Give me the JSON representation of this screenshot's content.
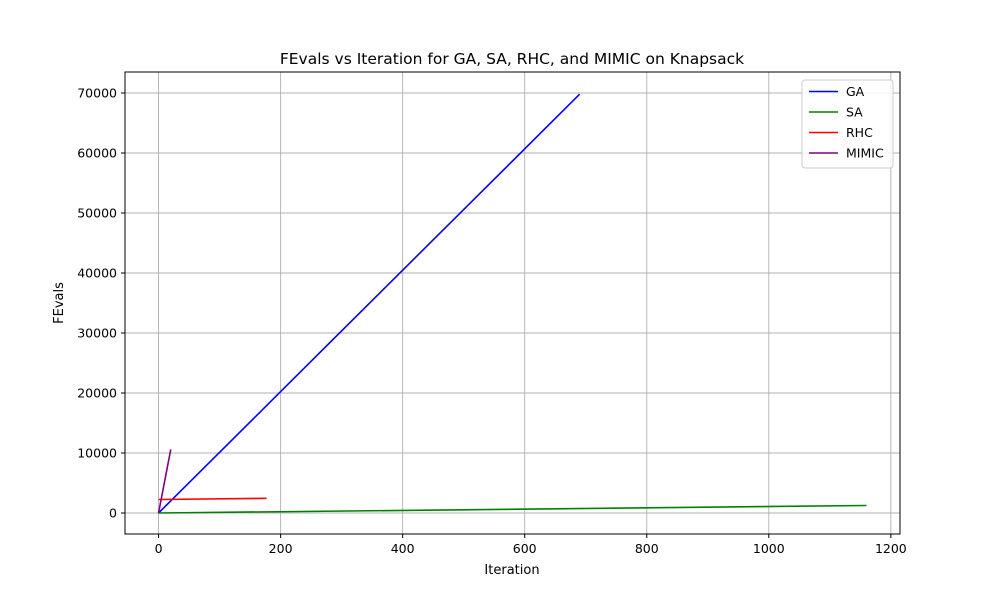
{
  "chart_data": {
    "type": "line",
    "title": "FEvals vs Iteration for GA, SA, RHC, and MIMIC on Knapsack",
    "xlabel": "Iteration",
    "ylabel": "FEvals",
    "xlim": [
      -55,
      1215
    ],
    "ylim": [
      -3500,
      73500
    ],
    "xticks": [
      0,
      200,
      400,
      600,
      800,
      1000,
      1200
    ],
    "yticks": [
      0,
      10000,
      20000,
      30000,
      40000,
      50000,
      60000,
      70000
    ],
    "grid": true,
    "legend_position": "top-right",
    "series": [
      {
        "name": "GA",
        "color": "#0000ff",
        "x": [
          0,
          690
        ],
        "y": [
          0,
          69800
        ]
      },
      {
        "name": "SA",
        "color": "#008000",
        "x": [
          0,
          1160
        ],
        "y": [
          0,
          1250
        ]
      },
      {
        "name": "RHC",
        "color": "#ff0000",
        "x": [
          0,
          177
        ],
        "y": [
          2250,
          2450
        ]
      },
      {
        "name": "MIMIC",
        "color": "#800080",
        "x": [
          0,
          20
        ],
        "y": [
          0,
          10600
        ]
      }
    ]
  }
}
